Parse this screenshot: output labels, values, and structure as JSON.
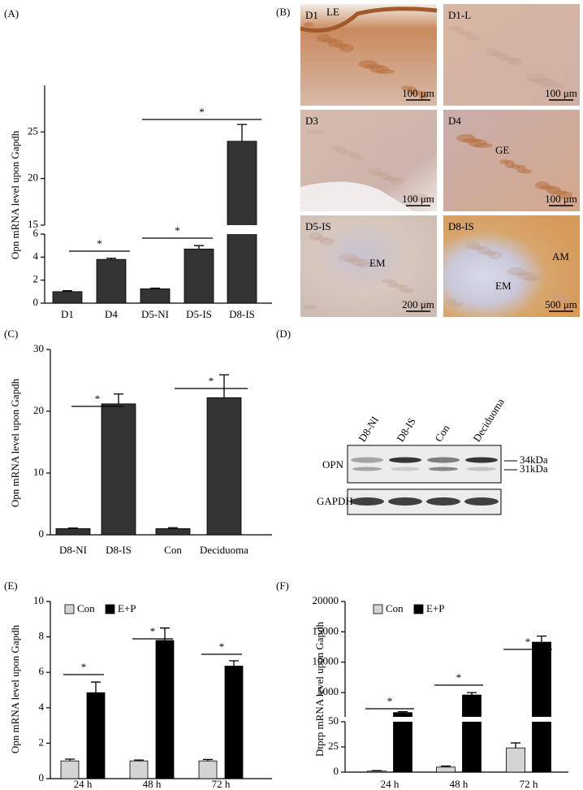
{
  "chart_data": [
    {
      "type": "bar",
      "label": "(A)",
      "ylabel": "Opn mRNA level upon Gapdh",
      "categories": [
        "D1",
        "D4",
        "D5-NI",
        "D5-IS",
        "D8-IS"
      ],
      "values": [
        1.0,
        3.8,
        1.25,
        4.7,
        24.0
      ],
      "errors": [
        0.08,
        0.1,
        0.05,
        0.3,
        1.8
      ],
      "color": "#333333",
      "y_segments": [
        {
          "ylim": [
            0,
            6
          ],
          "yticks": [
            0,
            2,
            4,
            6
          ]
        },
        {
          "ylim": [
            15,
            30
          ],
          "yticks": [
            15,
            20,
            25
          ]
        }
      ],
      "annotations": [
        "*",
        "*",
        "*"
      ]
    },
    {
      "type": "bar",
      "label": "(C)",
      "ylabel": "Opn mRNA level upon Gapdh",
      "categories": [
        "D8-NI",
        "D8-IS",
        "Con",
        "Deciduoma"
      ],
      "values": [
        1.0,
        21.2,
        1.0,
        22.2
      ],
      "errors": [
        0.1,
        1.6,
        0.15,
        3.7
      ],
      "color": "#333333",
      "ylim": [
        0,
        30
      ],
      "yticks": [
        0,
        10,
        20,
        30
      ],
      "annotations": [
        "*",
        "*"
      ]
    },
    {
      "type": "bar",
      "label": "(E)",
      "ylabel": "Opn mRNA level upon Gapdh",
      "categories": [
        "24 h",
        "48 h",
        "72 h"
      ],
      "series": [
        {
          "name": "Con",
          "color": "#d4d4d4",
          "values": [
            1.0,
            1.0,
            1.0
          ],
          "errors": [
            0.1,
            0.05,
            0.08
          ]
        },
        {
          "name": "E+P",
          "color": "#000000",
          "values": [
            4.85,
            7.8,
            6.35
          ],
          "errors": [
            0.6,
            0.7,
            0.3
          ]
        }
      ],
      "ylim": [
        0,
        10
      ],
      "yticks": [
        0,
        2,
        4,
        6,
        8,
        10
      ],
      "legend": "upper left",
      "annotations": [
        "*",
        "*",
        "*"
      ]
    },
    {
      "type": "bar",
      "label": "(F)",
      "ylabel": "Dtprp mRNA level upon Gapdh",
      "categories": [
        "24 h",
        "48 h",
        "72 h"
      ],
      "series": [
        {
          "name": "Con",
          "color": "#d4d4d4",
          "values": [
            1,
            5,
            24
          ],
          "errors": [
            0.5,
            1,
            5
          ]
        },
        {
          "name": "E+P",
          "color": "#000000",
          "values": [
            1700,
            4600,
            13300
          ],
          "errors": [
            150,
            400,
            1000
          ]
        }
      ],
      "y_segments": [
        {
          "ylim": [
            0,
            50
          ],
          "yticks": [
            0,
            25,
            50
          ]
        },
        {
          "ylim": [
            1000,
            20000
          ],
          "yticks": [
            5000,
            10000,
            15000,
            20000
          ]
        }
      ],
      "legend": "upper left",
      "annotations": [
        "*",
        "*",
        "*"
      ]
    }
  ],
  "micrographs": {
    "label": "(B)",
    "panels": [
      {
        "title": "D1",
        "annotations": [
          "LE"
        ],
        "scale": "100 μm"
      },
      {
        "title": "D1-L",
        "annotations": [],
        "scale": "100 μm"
      },
      {
        "title": "D3",
        "annotations": [],
        "scale": "100 μm"
      },
      {
        "title": "D4",
        "annotations": [
          "GE"
        ],
        "scale": "100 μm"
      },
      {
        "title": "D5-IS",
        "annotations": [
          "EM"
        ],
        "scale": "200 μm"
      },
      {
        "title": "D8-IS",
        "annotations": [
          "EM",
          "AM"
        ],
        "scale": "500 μm"
      }
    ]
  },
  "western_blot": {
    "label": "(D)",
    "lanes": [
      "D8-NI",
      "D8-IS",
      "Con",
      "Deciduoma"
    ],
    "rows": [
      "OPN",
      "GAPDH"
    ],
    "markers": [
      "34kDa",
      "31kDa"
    ]
  }
}
